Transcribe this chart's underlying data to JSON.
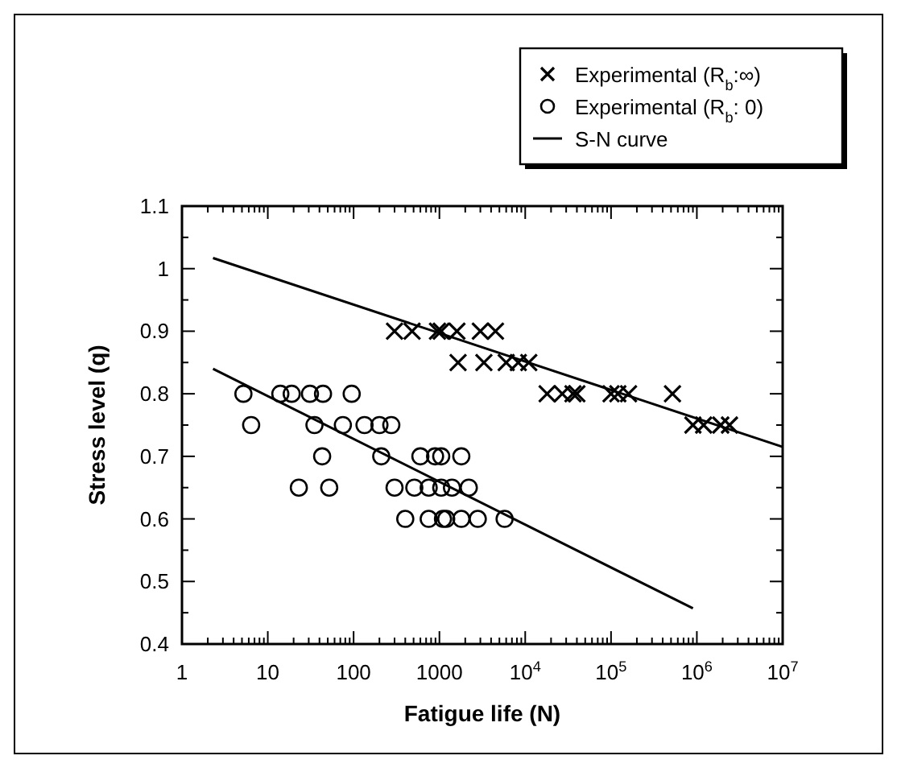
{
  "chart_data": {
    "type": "scatter",
    "xlabel": "Fatigue life (N)",
    "ylabel": "Stress level (q)",
    "log": "x",
    "xlim": [
      1,
      10000000
    ],
    "xticks": [
      1,
      10,
      100,
      1000,
      {
        "value": 10000,
        "label": "10$^{4}$"
      },
      {
        "value": 100000,
        "label": "10$^{5}$"
      },
      {
        "value": 1000000,
        "label": "10$^{6}$"
      },
      {
        "value": 10000000,
        "label": "10$^{7}$"
      }
    ],
    "ylim": [
      0.4,
      1.1
    ],
    "yticks": [
      0.4,
      {
        "value": 0.45,
        "label": null
      },
      0.5,
      {
        "value": 0.55,
        "label": null
      },
      0.6,
      {
        "value": 0.65,
        "label": null
      },
      0.7,
      {
        "value": 0.75,
        "label": null
      },
      0.8,
      {
        "value": 0.85,
        "label": null
      },
      0.9,
      {
        "value": 0.95,
        "label": null
      },
      1,
      {
        "value": 1.05,
        "label": null
      },
      1.1
    ],
    "grid": false,
    "legend": "top right",
    "series": [
      {
        "name": "Experimental (R$_{b}$:∞)",
        "type": "scatter",
        "marker": "cross",
        "color": "#000000",
        "x": [
          300,
          480,
          950,
          1050,
          1600,
          3000,
          4500,
          1650,
          3300,
          6000,
          8300,
          11000,
          18000,
          27000,
          36000,
          40000,
          100000,
          120000,
          160000,
          520000,
          900000,
          1200000,
          1900000,
          2400000
        ],
        "values": [
          0.9,
          0.9,
          0.9,
          0.9,
          0.9,
          0.9,
          0.9,
          0.85,
          0.85,
          0.85,
          0.85,
          0.85,
          0.8,
          0.8,
          0.8,
          0.8,
          0.8,
          0.8,
          0.8,
          0.8,
          0.75,
          0.75,
          0.75,
          0.75
        ]
      },
      {
        "name": "Experimental (R$_{b}$: 0)",
        "type": "scatter",
        "marker": "circle",
        "color": "#000000",
        "x": [
          5.2,
          14,
          19,
          31,
          44,
          95,
          6.4,
          35,
          75,
          134,
          200,
          275,
          43,
          210,
          600,
          890,
          1050,
          1800,
          23,
          52,
          300,
          510,
          750,
          1050,
          1400,
          2200,
          400,
          750,
          1100,
          1200,
          1800,
          2800,
          5750
        ],
        "values": [
          0.8,
          0.8,
          0.8,
          0.8,
          0.8,
          0.8,
          0.75,
          0.75,
          0.75,
          0.75,
          0.75,
          0.75,
          0.7,
          0.7,
          0.7,
          0.7,
          0.7,
          0.7,
          0.65,
          0.65,
          0.65,
          0.65,
          0.65,
          0.65,
          0.65,
          0.65,
          0.6,
          0.6,
          0.6,
          0.6,
          0.6,
          0.6,
          0.6
        ]
      },
      {
        "name": "S-N curve",
        "type": "line",
        "marker": "none",
        "line_style": "solid",
        "color": "#000000",
        "x": [
          2.3,
          10000000
        ],
        "values": [
          1.017,
          0.715
        ]
      },
      {
        "type": "line",
        "marker": "none",
        "line_style": "solid",
        "color": "#000000",
        "x": [
          2.3,
          900000
        ],
        "values": [
          0.84,
          0.457
        ]
      }
    ]
  }
}
